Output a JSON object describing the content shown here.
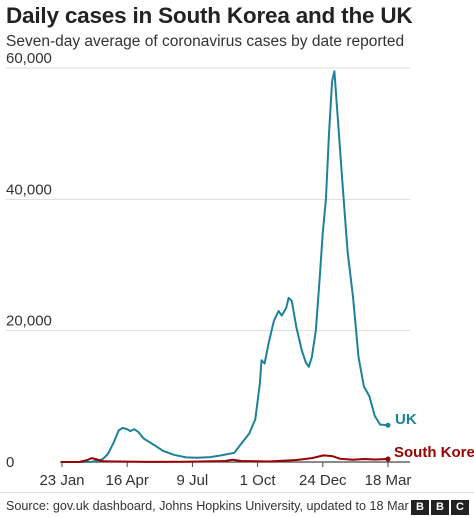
{
  "header": {
    "title": "Daily cases in South Korea and the UK",
    "subtitle": "Seven-day average of coronavirus cases by date reported"
  },
  "footer": {
    "source": "Source: gov.uk dashboard, Johns Hopkins University, updated to 18 Mar",
    "logo_letters": [
      "B",
      "B",
      "C"
    ]
  },
  "colors": {
    "uk": "#1d8299",
    "south_korea": "#990000",
    "grid": "#dddddd",
    "axis": "#444444",
    "text": "#222222"
  },
  "chart_data": {
    "type": "line",
    "title": "Daily cases in South Korea and the UK",
    "subtitle": "Seven-day average of coronavirus cases by date reported",
    "xlabel": "",
    "ylabel": "",
    "x_domain": [
      "2020-01-23",
      "2021-03-18"
    ],
    "ylim": [
      0,
      60000
    ],
    "y_ticks": [
      0,
      20000,
      40000,
      60000
    ],
    "y_tick_labels": [
      "0",
      "20,000",
      "40,000",
      "60,000"
    ],
    "x_ticks": [
      {
        "date": "2020-01-23",
        "label": "23 Jan"
      },
      {
        "date": "2020-04-16",
        "label": "16 Apr"
      },
      {
        "date": "2020-07-09",
        "label": "9 Jul"
      },
      {
        "date": "2020-10-01",
        "label": "1 Oct"
      },
      {
        "date": "2020-12-24",
        "label": "24 Dec"
      },
      {
        "date": "2021-03-18",
        "label": "18 Mar"
      }
    ],
    "grid": true,
    "legend": "direct labels at line ends",
    "series": [
      {
        "name": "UK",
        "color": "#1d8299",
        "points": [
          [
            "2020-01-23",
            0
          ],
          [
            "2020-03-01",
            10
          ],
          [
            "2020-03-15",
            400
          ],
          [
            "2020-03-22",
            1200
          ],
          [
            "2020-03-29",
            2800
          ],
          [
            "2020-04-05",
            4800
          ],
          [
            "2020-04-10",
            5200
          ],
          [
            "2020-04-16",
            5000
          ],
          [
            "2020-04-20",
            4700
          ],
          [
            "2020-04-25",
            5000
          ],
          [
            "2020-04-30",
            4600
          ],
          [
            "2020-05-07",
            3600
          ],
          [
            "2020-05-15",
            3000
          ],
          [
            "2020-05-22",
            2500
          ],
          [
            "2020-06-01",
            1700
          ],
          [
            "2020-06-15",
            1100
          ],
          [
            "2020-07-01",
            700
          ],
          [
            "2020-07-15",
            650
          ],
          [
            "2020-08-01",
            750
          ],
          [
            "2020-08-15",
            1000
          ],
          [
            "2020-09-01",
            1400
          ],
          [
            "2020-09-10",
            2800
          ],
          [
            "2020-09-20",
            4300
          ],
          [
            "2020-09-28",
            6500
          ],
          [
            "2020-10-04",
            12000
          ],
          [
            "2020-10-06",
            15500
          ],
          [
            "2020-10-10",
            15000
          ],
          [
            "2020-10-15",
            18000
          ],
          [
            "2020-10-22",
            21500
          ],
          [
            "2020-10-28",
            23000
          ],
          [
            "2020-11-01",
            22300
          ],
          [
            "2020-11-07",
            23500
          ],
          [
            "2020-11-10",
            25000
          ],
          [
            "2020-11-14",
            24500
          ],
          [
            "2020-11-20",
            20500
          ],
          [
            "2020-11-27",
            17000
          ],
          [
            "2020-12-02",
            15200
          ],
          [
            "2020-12-06",
            14500
          ],
          [
            "2020-12-10",
            16000
          ],
          [
            "2020-12-15",
            20000
          ],
          [
            "2020-12-20",
            28000
          ],
          [
            "2020-12-24",
            35000
          ],
          [
            "2020-12-28",
            40000
          ],
          [
            "2021-01-01",
            50000
          ],
          [
            "2021-01-05",
            58000
          ],
          [
            "2021-01-08",
            59500
          ],
          [
            "2021-01-12",
            53000
          ],
          [
            "2021-01-18",
            43000
          ],
          [
            "2021-01-25",
            32000
          ],
          [
            "2021-02-01",
            25000
          ],
          [
            "2021-02-08",
            16000
          ],
          [
            "2021-02-15",
            11500
          ],
          [
            "2021-02-22",
            10000
          ],
          [
            "2021-03-01",
            7000
          ],
          [
            "2021-03-08",
            5700
          ],
          [
            "2021-03-18",
            5600
          ]
        ]
      },
      {
        "name": "South Korea",
        "color": "#990000",
        "points": [
          [
            "2020-01-23",
            0
          ],
          [
            "2020-02-15",
            10
          ],
          [
            "2020-02-25",
            300
          ],
          [
            "2020-03-01",
            600
          ],
          [
            "2020-03-06",
            450
          ],
          [
            "2020-03-15",
            100
          ],
          [
            "2020-04-01",
            80
          ],
          [
            "2020-05-15",
            20
          ],
          [
            "2020-07-01",
            40
          ],
          [
            "2020-08-20",
            150
          ],
          [
            "2020-08-30",
            350
          ],
          [
            "2020-09-10",
            150
          ],
          [
            "2020-10-15",
            80
          ],
          [
            "2020-11-20",
            300
          ],
          [
            "2020-12-10",
            600
          ],
          [
            "2020-12-25",
            1000
          ],
          [
            "2021-01-05",
            900
          ],
          [
            "2021-01-15",
            500
          ],
          [
            "2021-02-01",
            350
          ],
          [
            "2021-02-15",
            450
          ],
          [
            "2021-03-01",
            380
          ],
          [
            "2021-03-18",
            450
          ]
        ]
      }
    ]
  }
}
